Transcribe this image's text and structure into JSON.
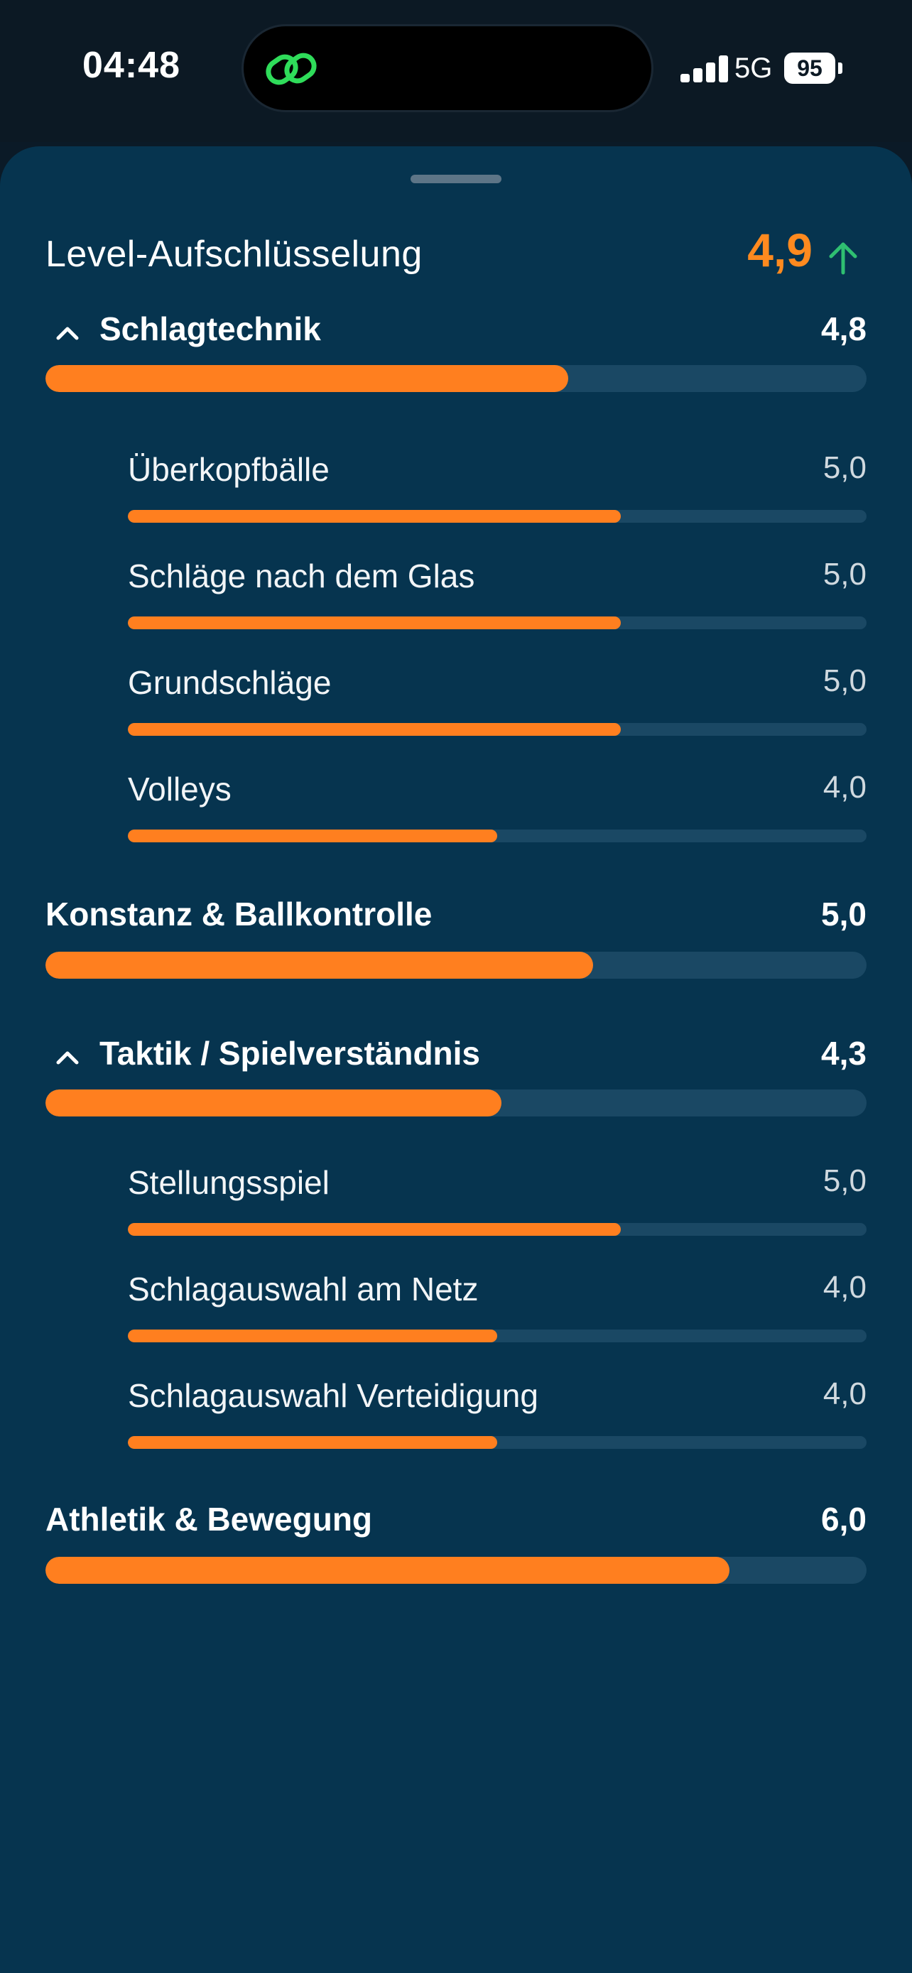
{
  "status": {
    "time": "04:48",
    "network": "5G",
    "battery": "95"
  },
  "header": {
    "title": "Level-Aufschlüsselung",
    "score": "4,9",
    "trend": "up"
  },
  "categories": [
    {
      "label": "Schlagtechnik",
      "value": "4,8",
      "expanded": true,
      "level": 0.637,
      "subs": [
        {
          "label": "Überkopfbälle",
          "value": "5,0",
          "level": 0.667
        },
        {
          "label": "Schläge nach dem Glas",
          "value": "5,0",
          "level": 0.667
        },
        {
          "label": "Grundschläge",
          "value": "5,0",
          "level": 0.667
        },
        {
          "label": "Volleys",
          "value": "4,0",
          "level": 0.5
        }
      ]
    },
    {
      "label": "Konstanz & Ballkontrolle",
      "value": "5,0",
      "expanded": false,
      "level": 0.667,
      "subs": []
    },
    {
      "label": "Taktik / Spielverständnis",
      "value": "4,3",
      "expanded": true,
      "level": 0.555,
      "subs": [
        {
          "label": "Stellungsspiel",
          "value": "5,0",
          "level": 0.667
        },
        {
          "label": "Schlagauswahl am Netz",
          "value": "4,0",
          "level": 0.5
        },
        {
          "label": "Schlagauswahl Verteidigung",
          "value": "4,0",
          "level": 0.5
        }
      ]
    },
    {
      "label": "Athletik & Bewegung",
      "value": "6,0",
      "expanded": false,
      "level": 0.833,
      "subs": []
    }
  ],
  "colors": {
    "accent": "#ff7f1f",
    "track": "#1a4864",
    "sheet": "#06344f",
    "trend_up": "#2fbf71"
  }
}
